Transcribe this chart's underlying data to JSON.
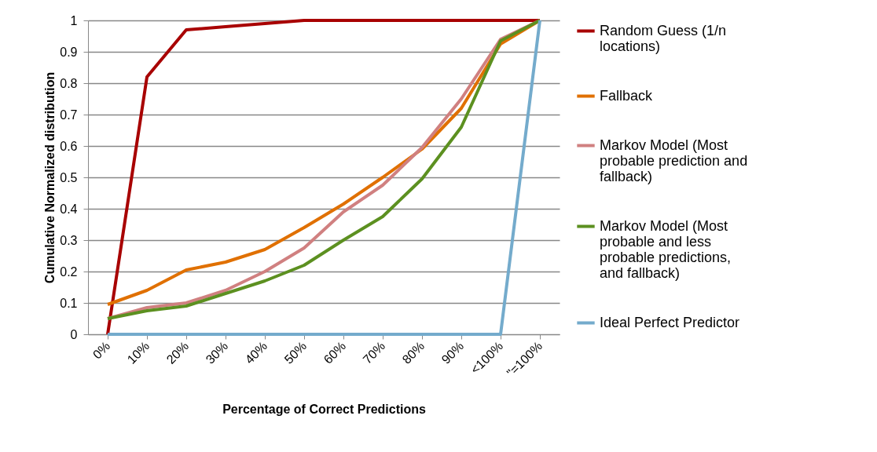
{
  "chart_data": {
    "type": "line",
    "xlabel": "Percentage of Correct Predictions",
    "ylabel": "Cumulative Normalized distribution",
    "categories": [
      "0%",
      "10%",
      "20%",
      "30%",
      "40%",
      "50%",
      "60%",
      "70%",
      "80%",
      "90%",
      "<100%",
      "\"=100%"
    ],
    "ylim": [
      0,
      1
    ],
    "yticks": [
      0,
      0.1,
      0.2,
      0.3,
      0.4,
      0.5,
      0.6,
      0.7,
      0.8,
      0.9,
      1
    ],
    "grid": "y",
    "legend": "right",
    "marker": "none",
    "series": [
      {
        "name": "Random Guess (1/n locations)",
        "color": "#a80000",
        "values": [
          0,
          0.82,
          0.97,
          0.98,
          0.99,
          1,
          1,
          1,
          1,
          1,
          1,
          1
        ]
      },
      {
        "name": "Fallback",
        "color": "#e07000",
        "values": [
          0.095,
          0.14,
          0.205,
          0.23,
          0.27,
          0.34,
          0.415,
          0.5,
          0.59,
          0.72,
          0.925,
          1
        ]
      },
      {
        "name": "Markov Model (Most probable prediction and fallback)",
        "color": "#d08080",
        "values": [
          0.05,
          0.085,
          0.1,
          0.14,
          0.2,
          0.275,
          0.39,
          0.475,
          0.595,
          0.75,
          0.94,
          1
        ]
      },
      {
        "name": "Markov Model (Most probable and  less probable predictions, and fallback)",
        "color": "#5c9020",
        "values": [
          0.05,
          0.075,
          0.09,
          0.13,
          0.17,
          0.22,
          0.3,
          0.375,
          0.495,
          0.66,
          0.935,
          1
        ]
      },
      {
        "name": "Ideal Perfect Predictor",
        "color": "#74abcc",
        "values": [
          0,
          0,
          0,
          0,
          0,
          0,
          0,
          0,
          0,
          0,
          0,
          1
        ]
      }
    ]
  }
}
